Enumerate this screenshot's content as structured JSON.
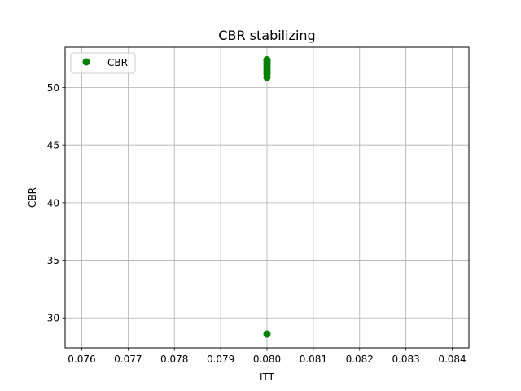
{
  "chart_data": {
    "type": "scatter",
    "title": "CBR stabilizing",
    "xlabel": "ITT",
    "ylabel": "CBR",
    "xlim": [
      0.07564,
      0.08436
    ],
    "ylim": [
      27.4,
      53.5
    ],
    "xticks": [
      0.076,
      0.077,
      0.078,
      0.079,
      0.08,
      0.081,
      0.082,
      0.083,
      0.084
    ],
    "xtick_labels": [
      "0.076",
      "0.077",
      "0.078",
      "0.079",
      "0.080",
      "0.081",
      "0.082",
      "0.083",
      "0.084"
    ],
    "yticks": [
      30,
      35,
      40,
      45,
      50
    ],
    "ytick_labels": [
      "30",
      "35",
      "40",
      "45",
      "50"
    ],
    "grid": true,
    "legend_position": "top-left",
    "series": [
      {
        "name": "CBR",
        "color": "#008000",
        "marker": "circle",
        "x": [
          0.08,
          0.08,
          0.08,
          0.08,
          0.08,
          0.08,
          0.08,
          0.08,
          0.08
        ],
        "y": [
          28.6,
          50.9,
          51.2,
          51.5,
          51.7,
          51.9,
          52.1,
          52.3,
          52.4
        ]
      }
    ]
  }
}
